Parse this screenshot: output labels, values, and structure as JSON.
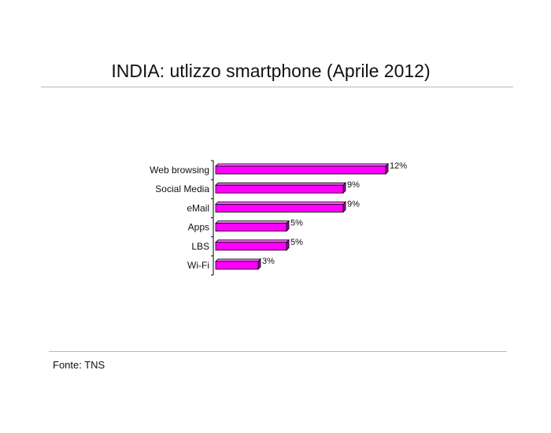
{
  "title": "INDIA: utlizzo smartphone (Aprile 2012)",
  "source": "Fonte: TNS",
  "colors": {
    "bar": "#ff00ff",
    "bar_top": "#ff66ff",
    "bar_side": "#990099"
  },
  "chart_data": {
    "type": "bar",
    "orientation": "horizontal",
    "categories": [
      "Web browsing",
      "Social Media",
      "eMail",
      "Apps",
      "LBS",
      "Wi-Fi"
    ],
    "values": [
      12,
      9,
      9,
      5,
      5,
      3
    ],
    "value_labels": [
      "12%",
      "9%",
      "9%",
      "5%",
      "5%",
      "3%"
    ],
    "unit": "%",
    "xlim": [
      0,
      12
    ],
    "grid": false,
    "legend": "none",
    "title": "INDIA: utlizzo smartphone (Aprile 2012)"
  }
}
